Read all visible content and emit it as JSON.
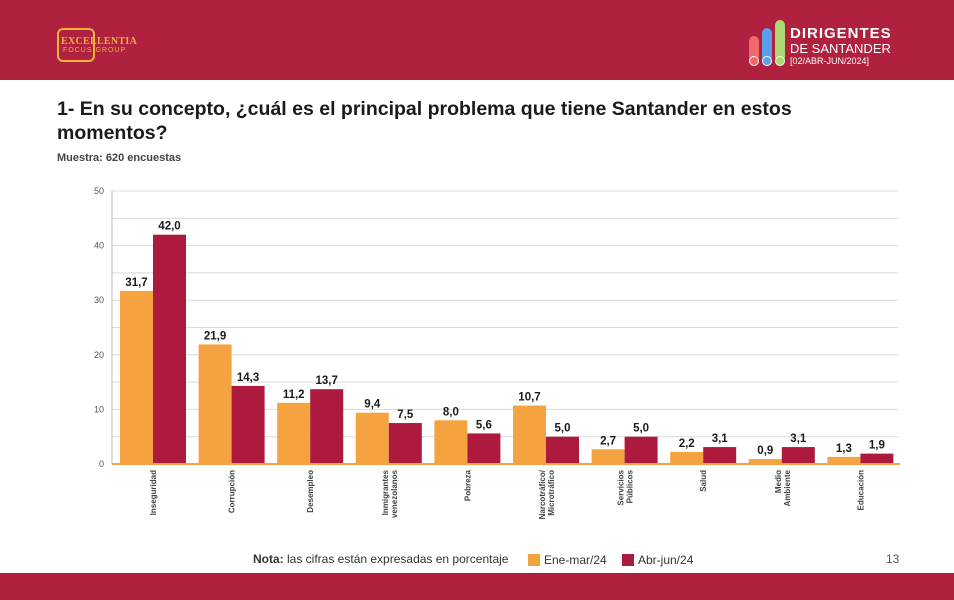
{
  "header": {
    "logo_left": {
      "line1": "EXCELLENTIA",
      "line2": "FOCUS GROUP"
    },
    "logo_right": {
      "title": "DIRIGENTES",
      "subtitle": "DE SANTANDER",
      "date": "[02/ABR-JUN/2024]"
    }
  },
  "question": "1- En su concepto, ¿cuál es el principal problema que tiene Santander en estos momentos?",
  "sample": "Muestra: 620 encuestas",
  "note_label": "Nota:",
  "note_text": " las cifras están expresadas en porcentaje",
  "page_number": "13",
  "colors": {
    "brand": "#b0203f",
    "series1": "#f4a340",
    "series2": "#ad1a3d"
  },
  "chart_data": {
    "type": "bar",
    "categories": [
      "Inseguridad",
      "Corrupción",
      "Desempleo",
      "Inmigrantes venezolanos",
      "Pobreza",
      "Narcotráfico/ Microtráfico",
      "Servicios Públicos",
      "Salud",
      "Medio Ambiente",
      "Educación"
    ],
    "series": [
      {
        "name": "Ene-mar/24",
        "values": [
          31.7,
          21.9,
          11.2,
          9.4,
          8.0,
          10.7,
          2.7,
          2.2,
          0.9,
          1.3
        ],
        "labels": [
          "31,7",
          "21,9",
          "11,2",
          "9,4",
          "8,0",
          "10,7",
          "2,7",
          "2,2",
          "0,9",
          "1,3"
        ]
      },
      {
        "name": "Abr-jun/24",
        "values": [
          42.0,
          14.3,
          13.7,
          7.5,
          5.6,
          5.0,
          5.0,
          3.1,
          3.1,
          1.9
        ],
        "labels": [
          "42,0",
          "14,3",
          "13,7",
          "7,5",
          "5,6",
          "5,0",
          "5,0",
          "3,1",
          "3,1",
          "1,9"
        ]
      }
    ],
    "ylim": [
      0,
      50
    ],
    "yticks": [
      "0",
      "10",
      "20",
      "30",
      "40",
      "50"
    ],
    "grid": true,
    "legend_position": "bottom"
  }
}
